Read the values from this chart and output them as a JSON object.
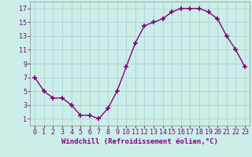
{
  "x": [
    0,
    1,
    2,
    3,
    4,
    5,
    6,
    7,
    8,
    9,
    10,
    11,
    12,
    13,
    14,
    15,
    16,
    17,
    18,
    19,
    20,
    21,
    22,
    23
  ],
  "y": [
    7,
    5,
    4,
    4,
    3,
    1.5,
    1.5,
    1,
    2.5,
    5,
    8.5,
    12,
    14.5,
    15,
    15.5,
    16.5,
    17,
    17,
    17,
    16.5,
    15.5,
    13,
    11,
    8.5
  ],
  "line_color": "#800080",
  "marker": "+",
  "marker_size": 4,
  "background_color": "#cceee8",
  "grid_color": "#b0d8d8",
  "xlabel": "Windchill (Refroidissement éolien,°C)",
  "xlim": [
    -0.5,
    23.5
  ],
  "ylim": [
    0,
    18
  ],
  "yticks": [
    1,
    3,
    5,
    7,
    9,
    11,
    13,
    15,
    17
  ],
  "xticks": [
    0,
    1,
    2,
    3,
    4,
    5,
    6,
    7,
    8,
    9,
    10,
    11,
    12,
    13,
    14,
    15,
    16,
    17,
    18,
    19,
    20,
    21,
    22,
    23
  ],
  "label_fontsize": 6.5,
  "tick_fontsize": 6
}
